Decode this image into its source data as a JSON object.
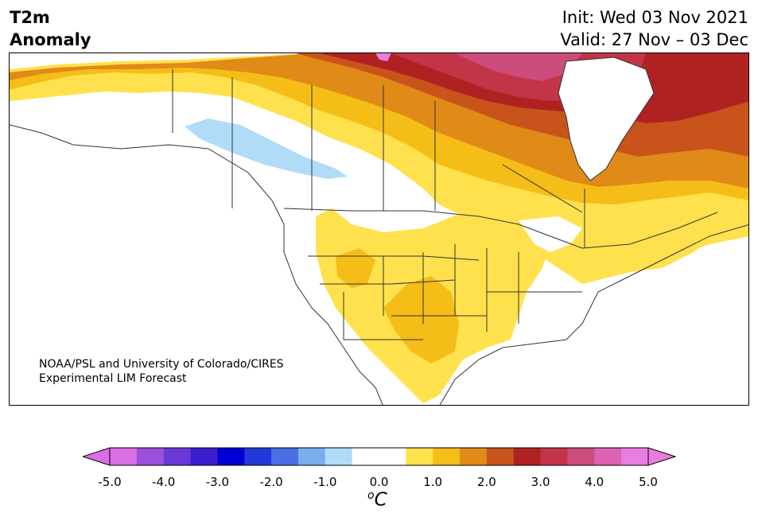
{
  "header": {
    "title_line1": "T2m",
    "title_line2": "Anomaly",
    "init": "Init: Wed 03 Nov 2021",
    "valid": "Valid: 27 Nov – 03 Dec"
  },
  "credit": {
    "line1": "NOAA/PSL and University of Colorado/CIRES",
    "line2": "Experimental LIM Forecast"
  },
  "colorbar": {
    "colors": [
      "#d96ee6",
      "#9c4fdc",
      "#6a38d6",
      "#3a1fcf",
      "#0000d4",
      "#2238d8",
      "#4a6fe3",
      "#78aef0",
      "#b0dcf8",
      "#ffffff",
      "#ffffff",
      "#ffe14d",
      "#f5bd17",
      "#e08a18",
      "#c8541c",
      "#b02222",
      "#c23548",
      "#cc4d7c",
      "#dc63b2",
      "#ea7de0"
    ],
    "low_color": "#d96ee6",
    "high_color": "#ea7de0",
    "ticks": [
      "-5.0",
      "-4.0",
      "-3.0",
      "-2.0",
      "-1.0",
      "0.0",
      "1.0",
      "2.0",
      "3.0",
      "4.0",
      "5.0"
    ],
    "unit_sup": "o",
    "unit": "C"
  }
}
